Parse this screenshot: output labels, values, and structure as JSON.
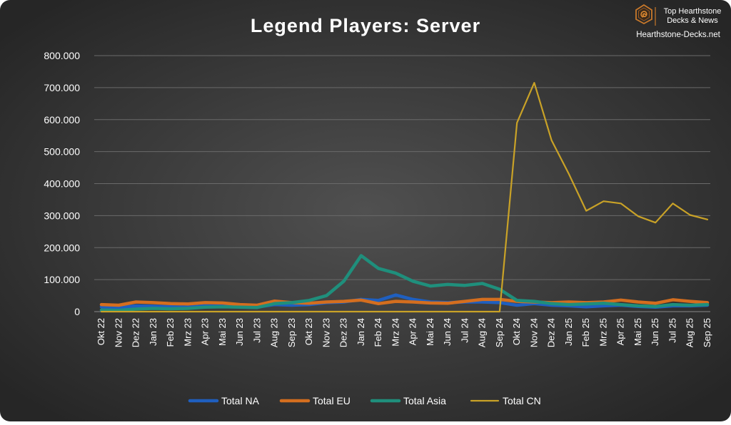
{
  "branding": {
    "logo_line1": "Top Hearthstone",
    "logo_line2": "Decks & News",
    "site": "Hearthstone-Decks.net",
    "logo_icon": "hearthstone-swirl-icon"
  },
  "colors": {
    "background_center": "#4f4f4f",
    "background_edge": "#262626",
    "grid": "#6a6a6a",
    "text": "#ffffff",
    "logo_accent": "#c8782a"
  },
  "chart_data": {
    "type": "line",
    "title": "Legend Players: Server",
    "xlabel": "",
    "ylabel": "",
    "ylim": [
      0,
      800000
    ],
    "yticks": [
      0,
      100000,
      200000,
      300000,
      400000,
      500000,
      600000,
      700000,
      800000
    ],
    "ytick_labels": [
      "0",
      "100.000",
      "200.000",
      "300.000",
      "400.000",
      "500.000",
      "600.000",
      "700.000",
      "800.000"
    ],
    "grid": true,
    "legend_position": "bottom",
    "categories": [
      "Okt 22",
      "Nov 22",
      "Dez 22",
      "Jan 23",
      "Feb 23",
      "Mrz 23",
      "Apr 23",
      "Mai 23",
      "Jun 23",
      "Jul 23",
      "Aug 23",
      "Sep 23",
      "Okt 23",
      "Nov 23",
      "Dez 23",
      "Jan 24",
      "Feb 24",
      "Mrz 24",
      "Apr 24",
      "Mai 24",
      "Jun 24",
      "Jul 24",
      "Aug 24",
      "Sep 24",
      "Okt 24",
      "Nov 24",
      "Dez 24",
      "Jan 25",
      "Feb 25",
      "Mrz 25",
      "Apr 25",
      "Mai 25",
      "Jun 25",
      "Jul 25",
      "Aug 25",
      "Sep 25"
    ],
    "series": [
      {
        "name": "Total NA",
        "color": "#1f5fbf",
        "values": [
          15000,
          13000,
          18000,
          17000,
          15000,
          14000,
          18000,
          17000,
          15000,
          14000,
          22000,
          20000,
          22000,
          28000,
          30000,
          38000,
          35000,
          52000,
          38000,
          30000,
          28000,
          30000,
          30000,
          28000,
          20000,
          25000,
          20000,
          18000,
          15000,
          18000,
          20000,
          16000,
          14000,
          18000,
          18000,
          20000
        ]
      },
      {
        "name": "Total EU",
        "color": "#d46e1f",
        "values": [
          22000,
          20000,
          30000,
          28000,
          25000,
          24000,
          28000,
          27000,
          22000,
          20000,
          33000,
          28000,
          26000,
          30000,
          32000,
          36000,
          25000,
          32000,
          30000,
          27000,
          26000,
          32000,
          38000,
          38000,
          32000,
          30000,
          28000,
          30000,
          28000,
          30000,
          36000,
          30000,
          26000,
          37000,
          32000,
          28000
        ]
      },
      {
        "name": "Total Asia",
        "color": "#1f8f7c",
        "values": [
          5000,
          4000,
          8000,
          10000,
          9000,
          10000,
          14000,
          15000,
          14000,
          13000,
          25000,
          28000,
          35000,
          50000,
          95000,
          175000,
          135000,
          120000,
          95000,
          80000,
          85000,
          82000,
          88000,
          70000,
          35000,
          32000,
          25000,
          22000,
          24000,
          26000,
          22000,
          18000,
          16000,
          22000,
          20000,
          22000
        ]
      },
      {
        "name": "Total CN",
        "color": "#c9a227",
        "values": [
          0,
          0,
          0,
          0,
          0,
          0,
          0,
          0,
          0,
          0,
          0,
          0,
          0,
          0,
          0,
          0,
          0,
          0,
          0,
          0,
          0,
          0,
          0,
          0,
          590000,
          715000,
          535000,
          430000,
          315000,
          345000,
          338000,
          298000,
          278000,
          338000,
          302000,
          288000
        ]
      }
    ]
  }
}
